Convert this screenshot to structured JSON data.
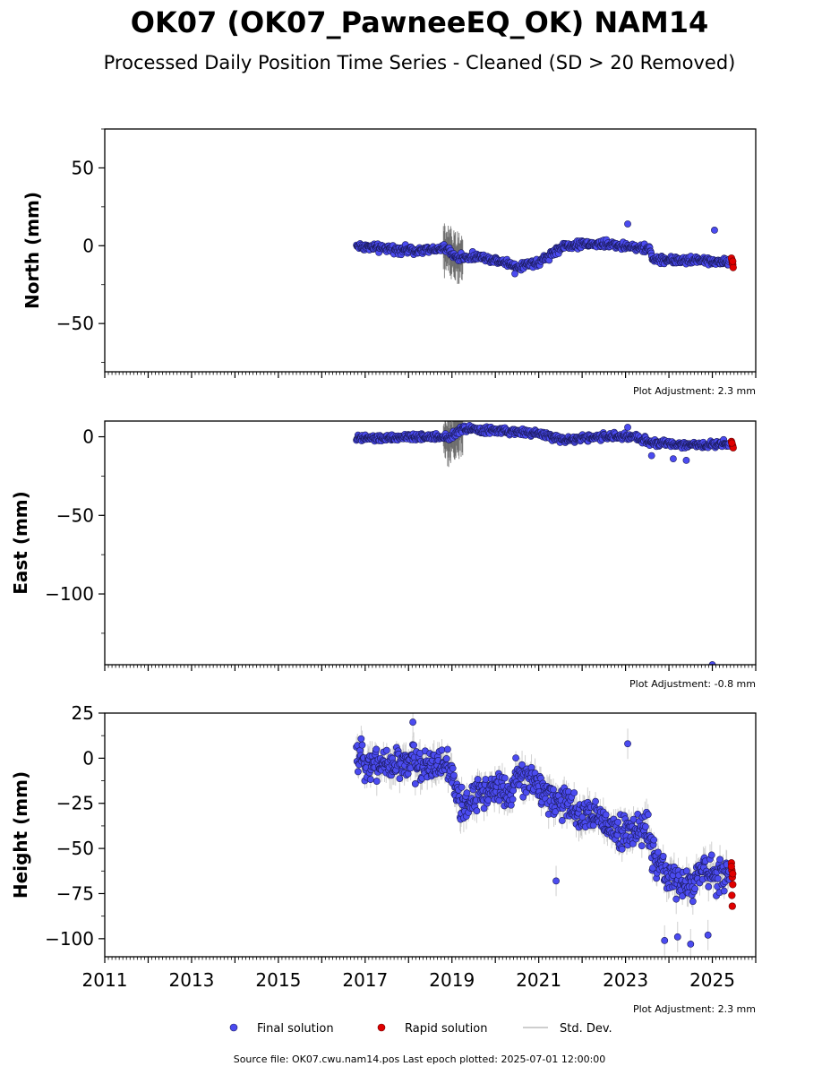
{
  "title": "OK07 (OK07_PawneeEQ_OK) NAM14",
  "subtitle": "Processed Daily Position Time Series - Cleaned (SD > 20 Removed)",
  "source_note": "Source file: OK07.cwu.nam14.pos  Last epoch plotted: 2025-07-01 12:00:00",
  "legend": {
    "final": "Final solution",
    "rapid": "Rapid solution",
    "stddev": "Std. Dev."
  },
  "colors": {
    "final": "#4b4bf0",
    "final_edge": "#1a1a5a",
    "rapid": "#e00000",
    "stddev": "#bdbdbd"
  },
  "chart_data": [
    {
      "type": "scatter",
      "ylabel": "North (mm)",
      "xlim": [
        2011,
        2026
      ],
      "ylim": [
        -81,
        75
      ],
      "yticks": [
        50,
        0,
        -50
      ],
      "ytick_labels": [
        "50",
        "0",
        "−50"
      ],
      "adjustment": "Plot Adjustment: 2.3 mm",
      "final_trend": [
        [
          2016.8,
          0
        ],
        [
          2017.5,
          -2
        ],
        [
          2018.3,
          -3
        ],
        [
          2018.9,
          -2
        ],
        [
          2019.1,
          -8
        ],
        [
          2019.6,
          -7
        ],
        [
          2020.2,
          -10
        ],
        [
          2020.5,
          -14
        ],
        [
          2020.8,
          -11
        ],
        [
          2021.0,
          -11
        ],
        [
          2021.3,
          -5
        ],
        [
          2021.6,
          0
        ],
        [
          2022.0,
          1
        ],
        [
          2022.6,
          1
        ],
        [
          2023.2,
          -1
        ],
        [
          2023.55,
          -2
        ],
        [
          2023.65,
          -9
        ],
        [
          2024.2,
          -9
        ],
        [
          2024.9,
          -10
        ],
        [
          2025.4,
          -10
        ]
      ],
      "final_noise": 1.8,
      "final_outliers": [
        [
          2023.05,
          14
        ],
        [
          2025.05,
          10
        ],
        [
          2020.45,
          -18
        ]
      ],
      "rapid_solution": [
        [
          2025.45,
          -9
        ],
        [
          2025.46,
          -11
        ],
        [
          2025.47,
          -12
        ],
        [
          2025.48,
          -14
        ],
        [
          2025.44,
          -8
        ],
        [
          2025.47,
          -10
        ]
      ],
      "stddev_max": 20
    },
    {
      "type": "scatter",
      "ylabel": "East (mm)",
      "xlim": [
        2011,
        2026
      ],
      "ylim": [
        -145,
        10
      ],
      "yticks": [
        0,
        -50,
        -100
      ],
      "ytick_labels": [
        "0",
        "−50",
        "−100"
      ],
      "adjustment": "Plot Adjustment: -0.8 mm",
      "final_trend": [
        [
          2016.8,
          -1
        ],
        [
          2017.5,
          -1
        ],
        [
          2018.3,
          0
        ],
        [
          2019.0,
          0
        ],
        [
          2019.2,
          5
        ],
        [
          2020.0,
          4
        ],
        [
          2021.0,
          2
        ],
        [
          2021.6,
          -2
        ],
        [
          2022.4,
          0
        ],
        [
          2023.2,
          0
        ],
        [
          2023.5,
          -3
        ],
        [
          2024.2,
          -5
        ],
        [
          2024.9,
          -5
        ],
        [
          2025.4,
          -4
        ]
      ],
      "final_noise": 1.6,
      "final_outliers": [
        [
          2023.05,
          6
        ],
        [
          2023.6,
          -12
        ],
        [
          2024.1,
          -14
        ],
        [
          2024.4,
          -15
        ],
        [
          2025.0,
          -145
        ]
      ],
      "rapid_solution": [
        [
          2025.44,
          -3
        ],
        [
          2025.46,
          -5
        ],
        [
          2025.47,
          -6
        ],
        [
          2025.48,
          -7
        ],
        [
          2025.45,
          -4
        ]
      ],
      "stddev_max": 20
    },
    {
      "type": "scatter",
      "ylabel": "Height (mm)",
      "xlim": [
        2011,
        2026
      ],
      "ylim": [
        -110,
        25
      ],
      "yticks": [
        25,
        0,
        -25,
        -50,
        -75,
        -100
      ],
      "ytick_labels": [
        "25",
        "0",
        "−25",
        "−50",
        "−75",
        "−100"
      ],
      "xtick_labels": [
        "2011",
        "2013",
        "2015",
        "2017",
        "2019",
        "2021",
        "2023",
        "2025"
      ],
      "adjustment": "Plot Adjustment: 2.3 mm",
      "final_trend": [
        [
          2016.8,
          0
        ],
        [
          2017.3,
          -3
        ],
        [
          2017.8,
          -3
        ],
        [
          2018.4,
          -3
        ],
        [
          2018.9,
          -3
        ],
        [
          2019.2,
          -28
        ],
        [
          2019.6,
          -20
        ],
        [
          2020.0,
          -15
        ],
        [
          2020.3,
          -22
        ],
        [
          2020.5,
          -10
        ],
        [
          2021.0,
          -15
        ],
        [
          2021.5,
          -25
        ],
        [
          2022.0,
          -30
        ],
        [
          2022.5,
          -35
        ],
        [
          2023.0,
          -42
        ],
        [
          2023.5,
          -38
        ],
        [
          2023.7,
          -60
        ],
        [
          2024.0,
          -65
        ],
        [
          2024.4,
          -72
        ],
        [
          2024.8,
          -62
        ],
        [
          2025.4,
          -65
        ]
      ],
      "final_noise": 7,
      "final_outliers": [
        [
          2023.05,
          8
        ],
        [
          2021.4,
          -68
        ],
        [
          2023.9,
          -101
        ],
        [
          2024.2,
          -99
        ],
        [
          2024.5,
          -103
        ],
        [
          2024.9,
          -98
        ],
        [
          2018.1,
          20
        ]
      ],
      "rapid_solution": [
        [
          2025.44,
          -58
        ],
        [
          2025.45,
          -62
        ],
        [
          2025.46,
          -66
        ],
        [
          2025.47,
          -70
        ],
        [
          2025.45,
          -76
        ],
        [
          2025.46,
          -82
        ],
        [
          2025.44,
          -60
        ],
        [
          2025.47,
          -64
        ]
      ],
      "stddev_max": 20
    }
  ]
}
